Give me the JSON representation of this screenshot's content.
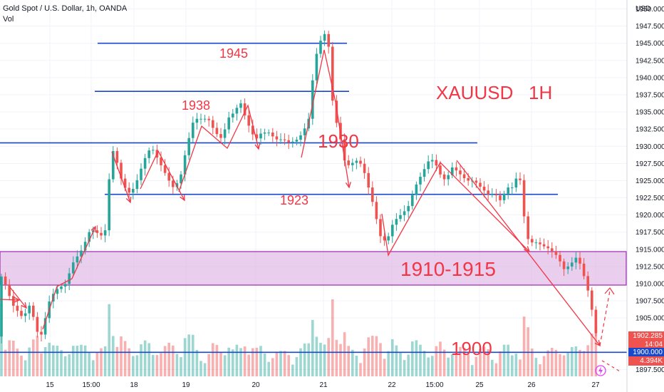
{
  "header": {
    "title": "Gold Spot / U.S. Dollar, 1h, OANDA",
    "vol_label": "Vol"
  },
  "price_axis": {
    "unit": "USD",
    "ticks": [
      "1950.000",
      "1947.500",
      "1945.000",
      "1942.500",
      "1940.000",
      "1937.500",
      "1935.000",
      "1932.500",
      "1930.000",
      "1927.500",
      "1925.000",
      "1922.500",
      "1920.000",
      "1917.500",
      "1915.000",
      "1912.500",
      "1910.000",
      "1907.500",
      "1905.000",
      "1900.000",
      "1897.500"
    ],
    "ylim": [
      1896.3,
      1951.3
    ]
  },
  "time_axis": {
    "labels": [
      "15",
      "15:00",
      "18",
      "19",
      "20",
      "21",
      "22",
      "15:00",
      "25",
      "26",
      "27"
    ]
  },
  "badges": {
    "last_price": "1902.285",
    "countdown": "14:04",
    "level": "1900.000",
    "volume": "4.394K"
  },
  "colors": {
    "up": "#26a69a",
    "down": "#ef5350",
    "annotation": "#f23645",
    "level_line": "#1848cc",
    "zone_fill": "#e1bee7",
    "zone_border": "#9c27b0"
  },
  "annotations": {
    "symbol_label": "XAUUSD   1H",
    "level_1945": "1945",
    "level_1938": "1938",
    "level_1930": "1930",
    "level_1923": "1923",
    "zone_label": "1910-1915",
    "level_1900": "1900"
  },
  "chart_data": {
    "type": "candlestick",
    "instrument": "Gold Spot / U.S. Dollar",
    "timeframe": "1h",
    "horizontal_levels": [
      1945,
      1938,
      1930.5,
      1923,
      1900
    ],
    "zone": [
      1910,
      1915
    ],
    "price_path": [
      [
        0,
        1912
      ],
      [
        10,
        1910
      ],
      [
        20,
        1907
      ],
      [
        35,
        1905
      ],
      [
        45,
        1907
      ],
      [
        55,
        1903
      ],
      [
        62,
        1902.5
      ],
      [
        70,
        1907
      ],
      [
        80,
        1909
      ],
      [
        95,
        1910
      ],
      [
        105,
        1913
      ],
      [
        118,
        1915
      ],
      [
        130,
        1918
      ],
      [
        145,
        1917
      ],
      [
        152,
        1918
      ],
      [
        157,
        1927
      ],
      [
        163,
        1930
      ],
      [
        170,
        1926
      ],
      [
        178,
        1924
      ],
      [
        186,
        1923
      ],
      [
        195,
        1925
      ],
      [
        205,
        1928
      ],
      [
        215,
        1930
      ],
      [
        225,
        1928
      ],
      [
        235,
        1926
      ],
      [
        245,
        1924
      ],
      [
        255,
        1925
      ],
      [
        265,
        1930
      ],
      [
        275,
        1934
      ],
      [
        285,
        1934
      ],
      [
        295,
        1934
      ],
      [
        305,
        1932
      ],
      [
        315,
        1931
      ],
      [
        322,
        1934
      ],
      [
        332,
        1935
      ],
      [
        340,
        1936.5
      ],
      [
        348,
        1934
      ],
      [
        356,
        1932
      ],
      [
        362,
        1931
      ],
      [
        370,
        1932
      ],
      [
        380,
        1932
      ],
      [
        390,
        1931
      ],
      [
        400,
        1931
      ],
      [
        410,
        1930.5
      ],
      [
        420,
        1931
      ],
      [
        428,
        1932
      ],
      [
        436,
        1934
      ],
      [
        442,
        1940
      ],
      [
        448,
        1944
      ],
      [
        455,
        1946
      ],
      [
        460,
        1946.5
      ],
      [
        465,
        1944
      ],
      [
        470,
        1936
      ],
      [
        476,
        1933
      ],
      [
        482,
        1930.5
      ],
      [
        488,
        1927
      ],
      [
        496,
        1927.5
      ],
      [
        505,
        1928
      ],
      [
        512,
        1927
      ],
      [
        520,
        1924
      ],
      [
        528,
        1921
      ],
      [
        536,
        1917
      ],
      [
        545,
        1916
      ],
      [
        555,
        1919
      ],
      [
        565,
        1920
      ],
      [
        575,
        1921
      ],
      [
        585,
        1924
      ],
      [
        595,
        1926
      ],
      [
        605,
        1928
      ],
      [
        612,
        1928
      ],
      [
        620,
        1926
      ],
      [
        628,
        1925
      ],
      [
        638,
        1927
      ],
      [
        648,
        1926
      ],
      [
        658,
        1925
      ],
      [
        668,
        1925
      ],
      [
        678,
        1924
      ],
      [
        688,
        1923
      ],
      [
        698,
        1923
      ],
      [
        706,
        1922
      ],
      [
        714,
        1924
      ],
      [
        722,
        1924
      ],
      [
        730,
        1926
      ],
      [
        736,
        1924
      ],
      [
        740,
        1917
      ],
      [
        748,
        1916
      ],
      [
        756,
        1916
      ],
      [
        765,
        1915.5
      ],
      [
        775,
        1915
      ],
      [
        785,
        1914
      ],
      [
        795,
        1912
      ],
      [
        805,
        1913
      ],
      [
        813,
        1914
      ],
      [
        820,
        1912
      ],
      [
        828,
        1909
      ],
      [
        834,
        1906
      ],
      [
        840,
        1902.3
      ]
    ]
  }
}
